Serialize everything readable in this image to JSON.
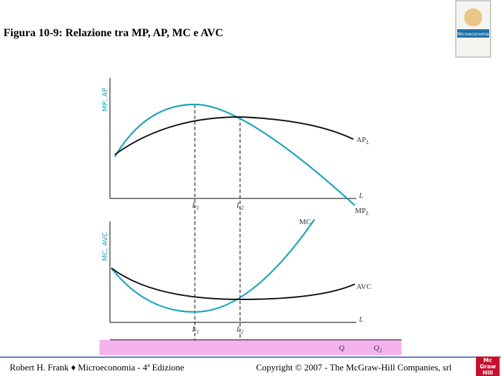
{
  "header": {
    "title": "Figura 10-9: Relazione tra MP, AP, MC e AVC"
  },
  "cover": {
    "title": "Microeconomia"
  },
  "top_panel": {
    "y_axis_label": "MP, AP",
    "x_axis_label": "L",
    "ap_label": {
      "main": "AP",
      "sub": "L"
    },
    "mp_label": {
      "main": "MP",
      "sub": "L"
    },
    "l1": {
      "main": "L",
      "sub": "1"
    },
    "l2": {
      "main": "L",
      "sub": "2"
    }
  },
  "bottom_panel": {
    "y_axis_label": "MC, AVC",
    "x_axis_label": "L",
    "mc_label": "MC",
    "avc_label": "AVC",
    "l1": {
      "main": "L",
      "sub": "1"
    },
    "l2": {
      "main": "L",
      "sub": "2"
    },
    "q_label": "Q",
    "q2_label": {
      "main": "Q",
      "sub": "2"
    }
  },
  "footer": {
    "author": "Robert H. Frank ♦ Microeconomia - 4",
    "edition_sup": "a",
    "edition_rest": " Edizione",
    "copyright": "Copyright © 2007 - The McGraw-Hill Companies, srl"
  },
  "logo": {
    "line1": "Mc",
    "line2": "Graw",
    "line3": "Hill"
  }
}
